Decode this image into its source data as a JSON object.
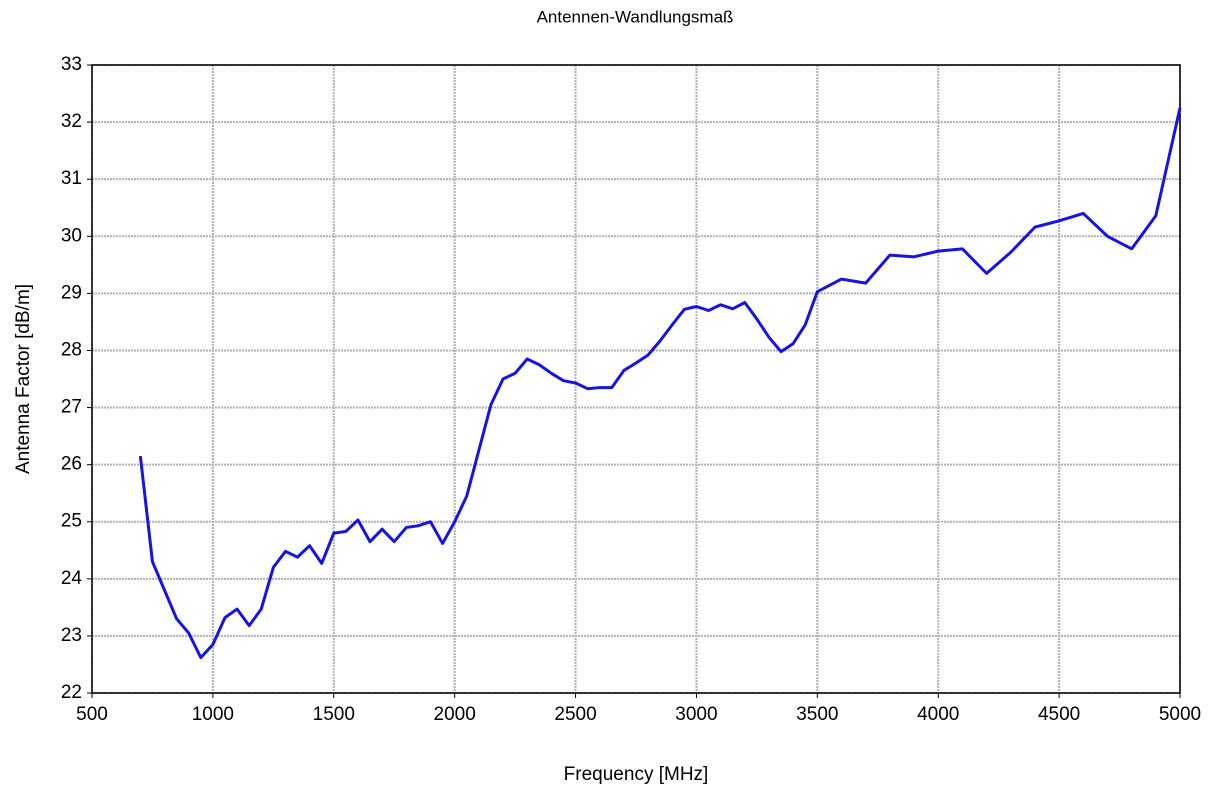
{
  "chart_data": {
    "type": "line",
    "title": "Antennen-Wandlungsmaß",
    "x_label": "Frequency [MHz]",
    "y_label": "Antenna Factor [dB/m]",
    "xlim": [
      500,
      5000
    ],
    "xticks": [
      500,
      1000,
      1500,
      2000,
      2500,
      3000,
      3500,
      4000,
      4500,
      5000
    ],
    "ylim": [
      22,
      33
    ],
    "yticks": [
      22,
      23,
      24,
      25,
      26,
      27,
      28,
      29,
      30,
      31,
      32,
      33
    ],
    "grid": true,
    "series": [
      {
        "color": "#1414e6",
        "x": [
          700,
          750,
          800,
          850,
          900,
          950,
          1000,
          1050,
          1100,
          1150,
          1200,
          1250,
          1300,
          1350,
          1400,
          1450,
          1500,
          1550,
          1600,
          1650,
          1700,
          1750,
          1800,
          1850,
          1900,
          1950,
          2000,
          2050,
          2100,
          2150,
          2200,
          2250,
          2300,
          2350,
          2400,
          2450,
          2500,
          2550,
          2600,
          2650,
          2700,
          2750,
          2800,
          2850,
          2900,
          2950,
          3000,
          3050,
          3100,
          3150,
          3200,
          3250,
          3300,
          3350,
          3400,
          3450,
          3500,
          3600,
          3700,
          3800,
          3900,
          4000,
          4100,
          4200,
          4300,
          4400,
          4500,
          4600,
          4700,
          4800,
          4900,
          5000
        ],
        "values": [
          26.15,
          24.3,
          23.8,
          23.3,
          23.05,
          22.62,
          22.85,
          23.32,
          23.47,
          23.18,
          23.47,
          24.2,
          24.48,
          24.38,
          24.58,
          24.27,
          24.8,
          24.83,
          25.03,
          24.65,
          24.87,
          24.65,
          24.9,
          24.93,
          25.0,
          24.62,
          25.0,
          25.45,
          26.25,
          27.05,
          27.5,
          27.6,
          27.85,
          27.75,
          27.6,
          27.47,
          27.43,
          27.33,
          27.35,
          27.35,
          27.65,
          27.78,
          27.92,
          28.17,
          28.45,
          28.72,
          28.77,
          28.7,
          28.8,
          28.73,
          28.84,
          28.55,
          28.23,
          27.98,
          28.12,
          28.45,
          29.03,
          29.25,
          29.18,
          29.67,
          29.64,
          29.74,
          29.78,
          29.35,
          29.72,
          30.16,
          30.27,
          30.4,
          30.0,
          29.78,
          30.36,
          32.25
        ]
      }
    ]
  }
}
